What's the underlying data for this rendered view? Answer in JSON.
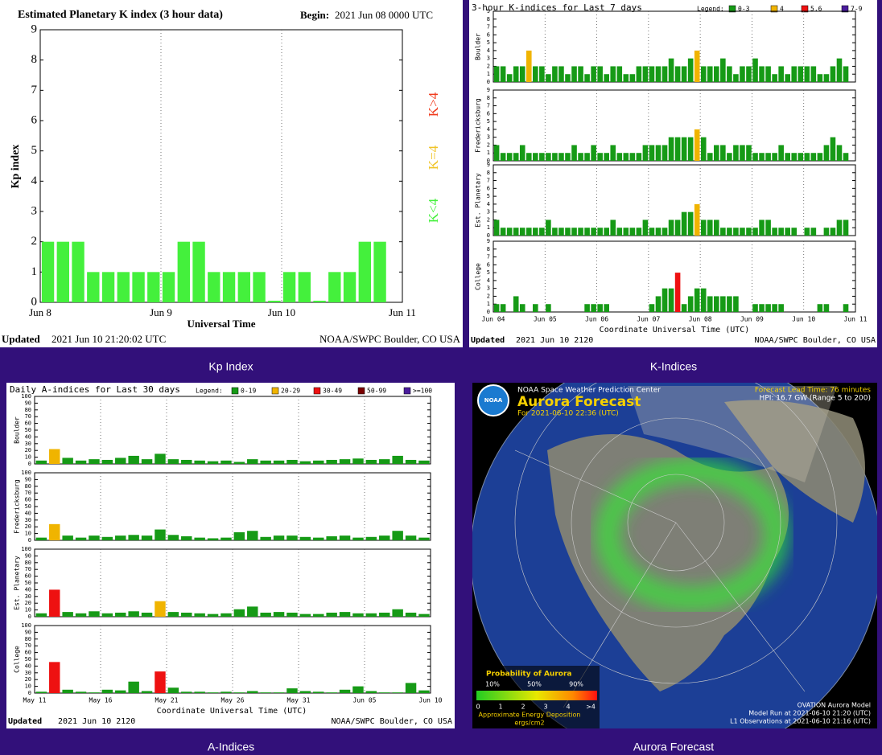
{
  "panels": {
    "kp": {
      "caption": "Kp Index",
      "chart": {
        "type": "bar",
        "title": "Estimated Planetary K index (3 hour data)",
        "begin_label": "Begin:",
        "begin": "2021 Jun 08 0000 UTC",
        "ylabel": "Kp index",
        "xlabel": "Universal Time",
        "categories": [
          "Jun 8",
          "Jun 9",
          "Jun 10",
          "Jun 11"
        ],
        "values": [
          2,
          2,
          2,
          1,
          1,
          1,
          1,
          1,
          1,
          2,
          2,
          1,
          1,
          1,
          1,
          0,
          1,
          1,
          0,
          1,
          1,
          2,
          2
        ],
        "ylim": [
          0,
          9
        ],
        "yticks": [
          0,
          1,
          2,
          3,
          4,
          5,
          6,
          7,
          8,
          9
        ],
        "legend": [
          {
            "label": "K<4",
            "color": "#44f03c"
          },
          {
            "label": "K=4",
            "color": "#f0c428"
          },
          {
            "label": "K>4",
            "color": "#f03c1e"
          }
        ],
        "updated_label": "Updated",
        "updated": "2021 Jun 10 21:20:02 UTC",
        "source": "NOAA/SWPC Boulder, CO USA"
      }
    },
    "k": {
      "caption": "K-Indices",
      "chart": {
        "type": "bar",
        "title": "3-hour K-indices for Last 7 days",
        "legend_label": "Legend:",
        "legend": [
          {
            "label": "0-3",
            "color": "#169a16"
          },
          {
            "label": "4",
            "color": "#f0b400"
          },
          {
            "label": "5,6",
            "color": "#ee1111"
          },
          {
            "label": "7-9",
            "color": "#4a1c9c"
          }
        ],
        "categories": [
          "Jun 04",
          "Jun 05",
          "Jun 06",
          "Jun 07",
          "Jun 08",
          "Jun 09",
          "Jun 10",
          "Jun 11"
        ],
        "xlabel": "Coordinate Universal Time (UTC)",
        "ylim": [
          0,
          9
        ],
        "yticks": [
          0,
          1,
          2,
          3,
          4,
          5,
          6,
          7,
          8,
          9
        ],
        "series": [
          {
            "name": "Boulder",
            "values": [
              2,
              2,
              1,
              2,
              2,
              4,
              2,
              2,
              1,
              2,
              2,
              1,
              2,
              2,
              1,
              2,
              2,
              1,
              2,
              2,
              1,
              1,
              2,
              2,
              2,
              2,
              2,
              3,
              2,
              2,
              3,
              4,
              2,
              2,
              2,
              3,
              2,
              1,
              2,
              2,
              3,
              2,
              2,
              1,
              2,
              1,
              2,
              2,
              2,
              2,
              1,
              1,
              2,
              3,
              2
            ]
          },
          {
            "name": "Fredericksburg",
            "values": [
              2,
              1,
              1,
              1,
              2,
              1,
              1,
              1,
              1,
              1,
              1,
              1,
              2,
              1,
              1,
              2,
              1,
              1,
              2,
              1,
              1,
              1,
              1,
              2,
              2,
              2,
              2,
              3,
              3,
              3,
              3,
              4,
              3,
              1,
              2,
              2,
              1,
              2,
              2,
              2,
              1,
              1,
              1,
              1,
              2,
              1,
              1,
              1,
              1,
              1,
              1,
              2,
              3,
              2,
              1
            ]
          },
          {
            "name": "Est. Planetary",
            "values": [
              2,
              1,
              1,
              1,
              1,
              1,
              1,
              1,
              2,
              1,
              1,
              1,
              1,
              1,
              1,
              1,
              1,
              1,
              2,
              1,
              1,
              1,
              1,
              2,
              1,
              1,
              1,
              2,
              2,
              3,
              3,
              4,
              2,
              2,
              2,
              1,
              1,
              1,
              1,
              1,
              1,
              2,
              2,
              1,
              1,
              1,
              1,
              0,
              1,
              1,
              0,
              1,
              1,
              2,
              2
            ]
          },
          {
            "name": "College",
            "values": [
              1,
              1,
              0,
              2,
              1,
              0,
              1,
              0,
              1,
              0,
              0,
              0,
              0,
              0,
              1,
              1,
              1,
              1,
              0,
              0,
              0,
              0,
              0,
              0,
              1,
              2,
              3,
              3,
              5,
              1,
              2,
              3,
              3,
              2,
              2,
              2,
              2,
              2,
              0,
              0,
              1,
              1,
              1,
              1,
              1,
              0,
              0,
              0,
              0,
              0,
              1,
              1,
              0,
              0,
              1
            ]
          }
        ],
        "updated_label": "Updated",
        "updated": "2021 Jun 10 2120",
        "source": "NOAA/SWPC Boulder, CO USA"
      }
    },
    "a": {
      "caption": "A-Indices",
      "chart": {
        "type": "bar",
        "title": "Daily A-indices for Last 30 days",
        "legend_label": "Legend:",
        "legend": [
          {
            "label": "0-19",
            "color": "#169a16"
          },
          {
            "label": "20-29",
            "color": "#f0b400"
          },
          {
            "label": "30-49",
            "color": "#ee1111"
          },
          {
            "label": "50-99",
            "color": "#7a0000"
          },
          {
            "label": ">=100",
            "color": "#4a1c9c"
          }
        ],
        "categories": [
          "May 11",
          "May 16",
          "May 21",
          "May 26",
          "May 31",
          "Jun 05",
          "Jun 10"
        ],
        "xlabel": "Coordinate Universal Time (UTC)",
        "ylim": [
          0,
          100
        ],
        "yticks": [
          0,
          10,
          20,
          30,
          40,
          50,
          60,
          70,
          80,
          90,
          100
        ],
        "series": [
          {
            "name": "Boulder",
            "values": [
              5,
              22,
              9,
              5,
              7,
              6,
              9,
              12,
              7,
              15,
              7,
              6,
              5,
              4,
              5,
              3,
              7,
              5,
              5,
              6,
              4,
              5,
              6,
              7,
              8,
              6,
              7,
              12,
              6,
              5
            ]
          },
          {
            "name": "Fredericksburg",
            "values": [
              4,
              24,
              7,
              4,
              7,
              5,
              7,
              8,
              7,
              16,
              8,
              6,
              4,
              3,
              4,
              12,
              14,
              5,
              7,
              7,
              5,
              4,
              6,
              7,
              4,
              5,
              7,
              14,
              7,
              4
            ]
          },
          {
            "name": "Est. Planetary",
            "values": [
              5,
              40,
              7,
              5,
              8,
              5,
              6,
              8,
              6,
              23,
              7,
              6,
              5,
              4,
              5,
              11,
              15,
              6,
              7,
              6,
              4,
              4,
              6,
              7,
              5,
              5,
              6,
              11,
              6,
              4
            ]
          },
          {
            "name": "College",
            "values": [
              2,
              46,
              5,
              2,
              1,
              5,
              4,
              17,
              3,
              32,
              8,
              2,
              2,
              1,
              2,
              1,
              3,
              1,
              1,
              7,
              3,
              2,
              1,
              5,
              10,
              3,
              1,
              1,
              15,
              4
            ]
          }
        ],
        "updated_label": "Updated",
        "updated": "2021 Jun 10 2120",
        "source": "NOAA/SWPC Boulder, CO USA"
      }
    },
    "aurora": {
      "caption": "Aurora Forecast",
      "logo": "NOAA",
      "org": "NOAA Space Weather Prediction Center",
      "title": "Aurora Forecast",
      "valid": "For 2021-06-10 22:36 (UTC)",
      "lead_time": "Forecast Lead Time: 76 minutes",
      "hpi": "HPI: 16.7 GW (Range 5 to 200)",
      "legend_title": "Probability of Aurora",
      "percent_ticks": [
        "10%",
        "50%",
        "90%"
      ],
      "energy_ticks": [
        0,
        1,
        2,
        3,
        4,
        ">4"
      ],
      "energy_label": "Approximate Energy Deposition",
      "energy_unit": "ergs/cm2",
      "model": "OVATION Aurora Model",
      "model_run": "Model Run at 2021-06-10 21:20 (UTC)",
      "l1_obs": "L1 Observations at 2021-06-10 21:16 (UTC)"
    }
  }
}
